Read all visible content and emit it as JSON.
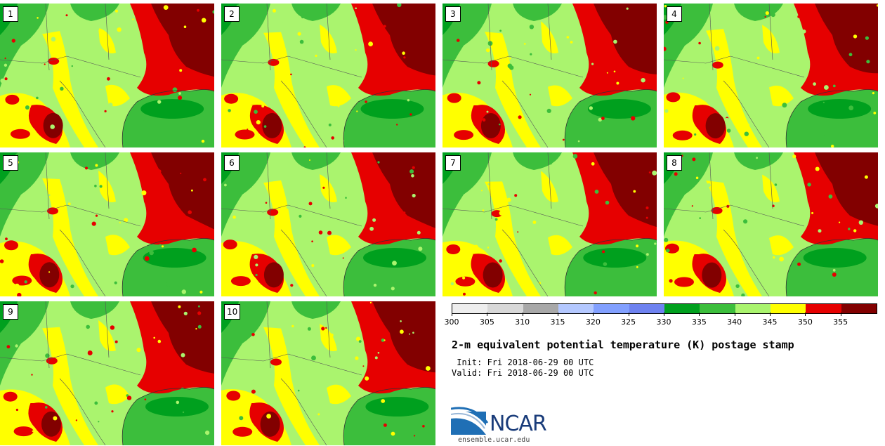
{
  "panels": [
    {
      "member": "1"
    },
    {
      "member": "2"
    },
    {
      "member": "3"
    },
    {
      "member": "4"
    },
    {
      "member": "5"
    },
    {
      "member": "6"
    },
    {
      "member": "7"
    },
    {
      "member": "8"
    },
    {
      "member": "9"
    },
    {
      "member": "10"
    }
  ],
  "colorbar": {
    "colors": [
      "#eeeeee",
      "#d8d8d8",
      "#a8a8a8",
      "#b4c8ff",
      "#82a0ff",
      "#6e82f0",
      "#00a01e",
      "#3cbe3c",
      "#aaf46e",
      "#ffff00",
      "#e60000",
      "#820000"
    ],
    "labels": [
      "300",
      "305",
      "310",
      "315",
      "320",
      "325",
      "330",
      "335",
      "340",
      "345",
      "350",
      "355"
    ]
  },
  "title": "2-m equivalent potential temperature (K) postage stamp",
  "init": " Init: Fri 2018-06-29 00 UTC",
  "valid": "Valid: Fri 2018-06-29 00 UTC",
  "logo": {
    "name": "NCAR",
    "url": "ensemble.ucar.edu"
  }
}
